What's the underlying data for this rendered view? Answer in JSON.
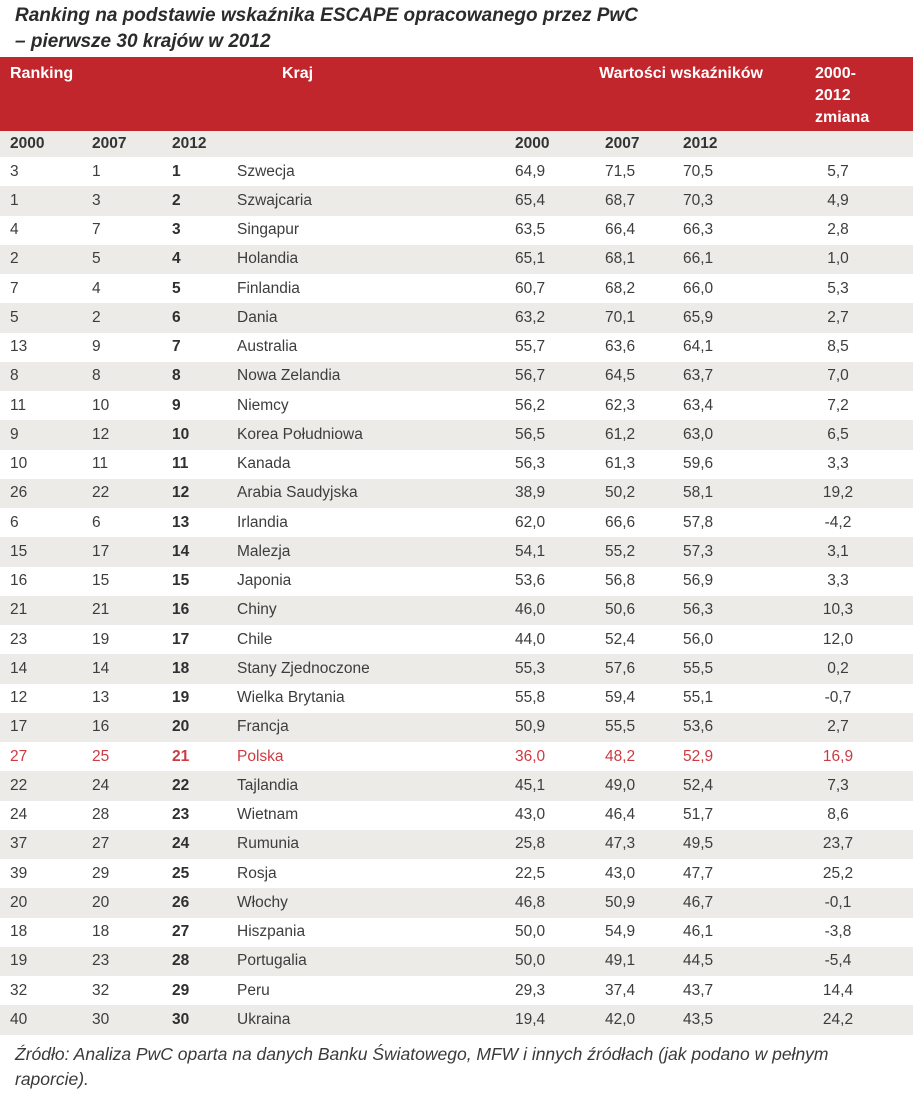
{
  "title": {
    "line1": "Ranking na podstawie wskaźnika ESCAPE opracowanego przez PwC",
    "line2": "– pierwsze 30 krajów w 2012"
  },
  "table": {
    "header": {
      "ranking": "Ranking",
      "kraj": "Kraj",
      "wartosci": "Wartości wskaźników",
      "change_lines": [
        "2000-",
        "2012",
        "zmiana"
      ]
    },
    "subheader": {
      "rank_years": [
        "2000",
        "2007",
        "2012"
      ],
      "value_years": [
        "2000",
        "2007",
        "2012"
      ]
    },
    "rows": [
      {
        "r2000": "3",
        "r2007": "1",
        "r2012": "1",
        "country": "Szwecja",
        "v2000": "64,9",
        "v2007": "71,5",
        "v2012": "70,5",
        "change": "5,7",
        "highlight": false
      },
      {
        "r2000": "1",
        "r2007": "3",
        "r2012": "2",
        "country": "Szwajcaria",
        "v2000": "65,4",
        "v2007": "68,7",
        "v2012": "70,3",
        "change": "4,9",
        "highlight": false
      },
      {
        "r2000": "4",
        "r2007": "7",
        "r2012": "3",
        "country": "Singapur",
        "v2000": "63,5",
        "v2007": "66,4",
        "v2012": "66,3",
        "change": "2,8",
        "highlight": false
      },
      {
        "r2000": "2",
        "r2007": "5",
        "r2012": "4",
        "country": "Holandia",
        "v2000": "65,1",
        "v2007": "68,1",
        "v2012": "66,1",
        "change": "1,0",
        "highlight": false
      },
      {
        "r2000": "7",
        "r2007": "4",
        "r2012": "5",
        "country": "Finlandia",
        "v2000": "60,7",
        "v2007": "68,2",
        "v2012": "66,0",
        "change": "5,3",
        "highlight": false
      },
      {
        "r2000": "5",
        "r2007": "2",
        "r2012": "6",
        "country": "Dania",
        "v2000": "63,2",
        "v2007": "70,1",
        "v2012": "65,9",
        "change": "2,7",
        "highlight": false
      },
      {
        "r2000": "13",
        "r2007": "9",
        "r2012": "7",
        "country": "Australia",
        "v2000": "55,7",
        "v2007": "63,6",
        "v2012": "64,1",
        "change": "8,5",
        "highlight": false
      },
      {
        "r2000": "8",
        "r2007": "8",
        "r2012": "8",
        "country": "Nowa Zelandia",
        "v2000": "56,7",
        "v2007": "64,5",
        "v2012": "63,7",
        "change": "7,0",
        "highlight": false
      },
      {
        "r2000": "11",
        "r2007": "10",
        "r2012": "9",
        "country": "Niemcy",
        "v2000": "56,2",
        "v2007": "62,3",
        "v2012": "63,4",
        "change": "7,2",
        "highlight": false
      },
      {
        "r2000": "9",
        "r2007": "12",
        "r2012": "10",
        "country": "Korea Południowa",
        "v2000": "56,5",
        "v2007": "61,2",
        "v2012": "63,0",
        "change": "6,5",
        "highlight": false
      },
      {
        "r2000": "10",
        "r2007": "11",
        "r2012": "11",
        "country": "Kanada",
        "v2000": "56,3",
        "v2007": "61,3",
        "v2012": "59,6",
        "change": "3,3",
        "highlight": false
      },
      {
        "r2000": "26",
        "r2007": "22",
        "r2012": "12",
        "country": "Arabia Saudyjska",
        "v2000": "38,9",
        "v2007": "50,2",
        "v2012": "58,1",
        "change": "19,2",
        "highlight": false
      },
      {
        "r2000": "6",
        "r2007": "6",
        "r2012": "13",
        "country": "Irlandia",
        "v2000": "62,0",
        "v2007": "66,6",
        "v2012": "57,8",
        "change": "-4,2",
        "highlight": false
      },
      {
        "r2000": "15",
        "r2007": "17",
        "r2012": "14",
        "country": "Malezja",
        "v2000": "54,1",
        "v2007": "55,2",
        "v2012": "57,3",
        "change": "3,1",
        "highlight": false
      },
      {
        "r2000": "16",
        "r2007": "15",
        "r2012": "15",
        "country": "Japonia",
        "v2000": "53,6",
        "v2007": "56,8",
        "v2012": "56,9",
        "change": "3,3",
        "highlight": false
      },
      {
        "r2000": "21",
        "r2007": "21",
        "r2012": "16",
        "country": "Chiny",
        "v2000": "46,0",
        "v2007": "50,6",
        "v2012": "56,3",
        "change": "10,3",
        "highlight": false
      },
      {
        "r2000": "23",
        "r2007": "19",
        "r2012": "17",
        "country": "Chile",
        "v2000": "44,0",
        "v2007": "52,4",
        "v2012": "56,0",
        "change": "12,0",
        "highlight": false
      },
      {
        "r2000": "14",
        "r2007": "14",
        "r2012": "18",
        "country": "Stany Zjednoczone",
        "v2000": "55,3",
        "v2007": "57,6",
        "v2012": "55,5",
        "change": "0,2",
        "highlight": false
      },
      {
        "r2000": "12",
        "r2007": "13",
        "r2012": "19",
        "country": "Wielka Brytania",
        "v2000": "55,8",
        "v2007": "59,4",
        "v2012": "55,1",
        "change": "-0,7",
        "highlight": false
      },
      {
        "r2000": "17",
        "r2007": "16",
        "r2012": "20",
        "country": "Francja",
        "v2000": "50,9",
        "v2007": "55,5",
        "v2012": "53,6",
        "change": "2,7",
        "highlight": false
      },
      {
        "r2000": "27",
        "r2007": "25",
        "r2012": "21",
        "country": "Polska",
        "v2000": "36,0",
        "v2007": "48,2",
        "v2012": "52,9",
        "change": "16,9",
        "highlight": true
      },
      {
        "r2000": "22",
        "r2007": "24",
        "r2012": "22",
        "country": "Tajlandia",
        "v2000": "45,1",
        "v2007": "49,0",
        "v2012": "52,4",
        "change": "7,3",
        "highlight": false
      },
      {
        "r2000": "24",
        "r2007": "28",
        "r2012": "23",
        "country": "Wietnam",
        "v2000": "43,0",
        "v2007": "46,4",
        "v2012": "51,7",
        "change": "8,6",
        "highlight": false
      },
      {
        "r2000": "37",
        "r2007": "27",
        "r2012": "24",
        "country": "Rumunia",
        "v2000": "25,8",
        "v2007": "47,3",
        "v2012": "49,5",
        "change": "23,7",
        "highlight": false
      },
      {
        "r2000": "39",
        "r2007": "29",
        "r2012": "25",
        "country": "Rosja",
        "v2000": "22,5",
        "v2007": "43,0",
        "v2012": "47,7",
        "change": "25,2",
        "highlight": false
      },
      {
        "r2000": "20",
        "r2007": "20",
        "r2012": "26",
        "country": "Włochy",
        "v2000": "46,8",
        "v2007": "50,9",
        "v2012": "46,7",
        "change": "-0,1",
        "highlight": false
      },
      {
        "r2000": "18",
        "r2007": "18",
        "r2012": "27",
        "country": "Hiszpania",
        "v2000": "50,0",
        "v2007": "54,9",
        "v2012": "46,1",
        "change": "-3,8",
        "highlight": false
      },
      {
        "r2000": "19",
        "r2007": "23",
        "r2012": "28",
        "country": "Portugalia",
        "v2000": "50,0",
        "v2007": "49,1",
        "v2012": "44,5",
        "change": "-5,4",
        "highlight": false
      },
      {
        "r2000": "32",
        "r2007": "32",
        "r2012": "29",
        "country": "Peru",
        "v2000": "29,3",
        "v2007": "37,4",
        "v2012": "43,7",
        "change": "14,4",
        "highlight": false
      },
      {
        "r2000": "40",
        "r2007": "30",
        "r2012": "30",
        "country": "Ukraina",
        "v2000": "19,4",
        "v2007": "42,0",
        "v2012": "43,5",
        "change": "24,2",
        "highlight": false
      }
    ]
  },
  "footer": {
    "source": "Źródło: Analiza PwC oparta na danych Banku Światowego, MFW i innych źródłach (jak podano w pełnym raporcie)."
  },
  "colors": {
    "header_red": "#c2262d",
    "highlight_red": "#cd3a41",
    "stripe_gray": "#edebe8"
  }
}
